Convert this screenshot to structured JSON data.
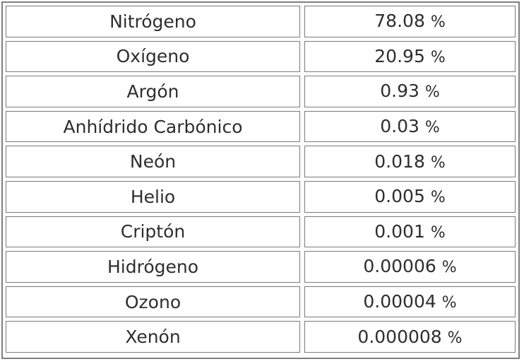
{
  "table": {
    "rows": [
      {
        "gas": "Nitrógeno",
        "value": "78.08",
        "unit": "%"
      },
      {
        "gas": "Oxígeno",
        "value": "20.95",
        "unit": "%"
      },
      {
        "gas": "Argón",
        "value": "0.93",
        "unit": "%"
      },
      {
        "gas": "Anhídrido Carbónico",
        "value": "0.03",
        "unit": "%"
      },
      {
        "gas": "Neón",
        "value": "0.018",
        "unit": "%"
      },
      {
        "gas": "Helio",
        "value": "0.005",
        "unit": "%"
      },
      {
        "gas": "Criptón",
        "value": "0.001",
        "unit": "%"
      },
      {
        "gas": "Hidrógeno",
        "value": "0.00006",
        "unit": "%"
      },
      {
        "gas": "Ozono",
        "value": "0.00004",
        "unit": "%"
      },
      {
        "gas": "Xenón",
        "value": "0.000008",
        "unit": "%"
      }
    ]
  }
}
